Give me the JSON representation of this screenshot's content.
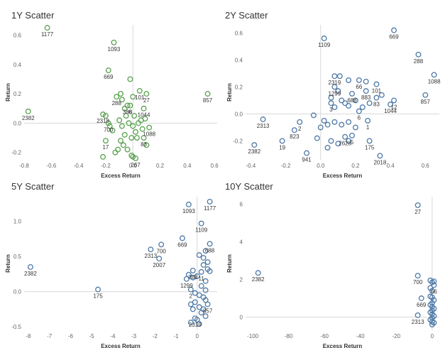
{
  "chart_data": [
    {
      "type": "scatter",
      "title": "1Y Scatter",
      "xlabel": "Excess Return",
      "ylabel": "Return",
      "xlim": [
        -0.8,
        0.62
      ],
      "ylim": [
        -0.25,
        0.67
      ],
      "xticks": [
        -0.8,
        -0.6,
        -0.4,
        -0.2,
        0.0,
        0.2,
        0.4,
        0.6
      ],
      "xtick_labels": [
        "-0.8",
        "-0.6",
        "-0.4",
        "-0.2",
        "0.0",
        "0.2",
        "0.4",
        "0.6"
      ],
      "yticks": [
        -0.2,
        0.0,
        0.2,
        0.4,
        0.6
      ],
      "ytick_labels": [
        "-0.2",
        "0.0",
        "0.2",
        "0.4",
        "0.6"
      ],
      "color": "#59a14f",
      "grid": false,
      "points": [
        {
          "x": -0.63,
          "y": 0.65,
          "label": "1177"
        },
        {
          "x": -0.77,
          "y": 0.08,
          "label": "2382"
        },
        {
          "x": -0.14,
          "y": 0.55,
          "label": "1093"
        },
        {
          "x": -0.18,
          "y": 0.36,
          "label": "669"
        },
        {
          "x": 0.55,
          "y": 0.2,
          "label": "857"
        },
        {
          "x": 0.05,
          "y": 0.22,
          "label": "101"
        },
        {
          "x": -0.12,
          "y": 0.18,
          "label": "288"
        },
        {
          "x": 0.1,
          "y": 0.2,
          "label": "27"
        },
        {
          "x": -0.04,
          "y": 0.12,
          "label": "388"
        },
        {
          "x": -0.02,
          "y": 0.12,
          "label": "6"
        },
        {
          "x": 0.08,
          "y": 0.1,
          "label": "1044"
        },
        {
          "x": -0.22,
          "y": 0.06,
          "label": "2318"
        },
        {
          "x": -0.18,
          "y": 0.0,
          "label": "700"
        },
        {
          "x": 0.12,
          "y": -0.03,
          "label": "1088"
        },
        {
          "x": 0.08,
          "y": -0.1,
          "label": "83"
        },
        {
          "x": -0.2,
          "y": -0.12,
          "label": "17"
        },
        {
          "x": 0.02,
          "y": -0.24,
          "label": "267"
        },
        {
          "x": -0.02,
          "y": 0.3
        },
        {
          "x": -0.2,
          "y": 0.05
        },
        {
          "x": -0.17,
          "y": -0.02
        },
        {
          "x": -0.15,
          "y": -0.05
        },
        {
          "x": -0.09,
          "y": 0.2
        },
        {
          "x": -0.08,
          "y": 0.16
        },
        {
          "x": -0.06,
          "y": 0.1
        },
        {
          "x": -0.05,
          "y": 0.05
        },
        {
          "x": -0.1,
          "y": 0.02
        },
        {
          "x": -0.08,
          "y": -0.02
        },
        {
          "x": -0.06,
          "y": -0.08
        },
        {
          "x": -0.09,
          "y": -0.12
        },
        {
          "x": -0.11,
          "y": -0.18
        },
        {
          "x": -0.07,
          "y": -0.15
        },
        {
          "x": -0.04,
          "y": -0.18
        },
        {
          "x": -0.03,
          "y": 0.0
        },
        {
          "x": 0.0,
          "y": 0.18
        },
        {
          "x": 0.01,
          "y": 0.05
        },
        {
          "x": 0.0,
          "y": -0.02
        },
        {
          "x": 0.02,
          "y": -0.06
        },
        {
          "x": 0.03,
          "y": -0.1
        },
        {
          "x": 0.04,
          "y": 0.0
        },
        {
          "x": 0.06,
          "y": 0.02
        },
        {
          "x": 0.07,
          "y": -0.04
        },
        {
          "x": 0.09,
          "y": 0.03
        },
        {
          "x": 0.1,
          "y": -0.15
        },
        {
          "x": 0.0,
          "y": -0.23
        },
        {
          "x": -0.01,
          "y": -0.22
        },
        {
          "x": -0.22,
          "y": -0.23
        },
        {
          "x": -0.13,
          "y": -0.2
        },
        {
          "x": -0.01,
          "y": -0.1
        }
      ]
    },
    {
      "type": "scatter",
      "title": "2Y Scatter",
      "xlabel": "Excess Return",
      "ylabel": "Return",
      "xlim": [
        -0.43,
        0.68
      ],
      "ylim": [
        -0.34,
        0.66
      ],
      "xticks": [
        -0.4,
        -0.2,
        0.0,
        0.2,
        0.4,
        0.6
      ],
      "xtick_labels": [
        "-0.4",
        "-0.2",
        "0.0",
        "0.2",
        "0.4",
        "0.6"
      ],
      "yticks": [
        -0.2,
        0.0,
        0.2,
        0.4,
        0.6
      ],
      "ytick_labels": [
        "-0.2",
        "0.0",
        "0.2",
        "0.4",
        "0.6"
      ],
      "color": "#4e79a7",
      "grid": false,
      "points": [
        {
          "x": 0.02,
          "y": 0.56,
          "label": "1109"
        },
        {
          "x": 0.42,
          "y": 0.62,
          "label": "669"
        },
        {
          "x": 0.56,
          "y": 0.44,
          "label": "288"
        },
        {
          "x": 0.65,
          "y": 0.29,
          "label": "1088"
        },
        {
          "x": 0.6,
          "y": 0.14,
          "label": "857"
        },
        {
          "x": 0.08,
          "y": 0.28,
          "label": "2319"
        },
        {
          "x": 0.22,
          "y": 0.25,
          "label": "66"
        },
        {
          "x": 0.32,
          "y": 0.22,
          "label": "101"
        },
        {
          "x": 0.08,
          "y": 0.2,
          "label": "1299"
        },
        {
          "x": 0.18,
          "y": 0.15,
          "label": "688"
        },
        {
          "x": 0.26,
          "y": 0.17,
          "label": "883"
        },
        {
          "x": 0.32,
          "y": 0.12,
          "label": "83"
        },
        {
          "x": 0.42,
          "y": 0.1,
          "label": "12"
        },
        {
          "x": 0.4,
          "y": 0.07,
          "label": "1044"
        },
        {
          "x": 0.06,
          "y": 0.08,
          "label": "3"
        },
        {
          "x": 0.22,
          "y": 0.02,
          "label": "6"
        },
        {
          "x": 0.27,
          "y": -0.05,
          "label": "1"
        },
        {
          "x": -0.33,
          "y": -0.04,
          "label": "2313"
        },
        {
          "x": -0.12,
          "y": -0.06,
          "label": "2"
        },
        {
          "x": -0.15,
          "y": -0.12,
          "label": "823"
        },
        {
          "x": -0.22,
          "y": -0.2,
          "label": "19"
        },
        {
          "x": -0.38,
          "y": -0.23,
          "label": "2382"
        },
        {
          "x": 0.14,
          "y": -0.17,
          "label": "2628"
        },
        {
          "x": 0.18,
          "y": -0.16,
          "label": "5"
        },
        {
          "x": 0.28,
          "y": -0.2,
          "label": "175"
        },
        {
          "x": 0.34,
          "y": -0.31,
          "label": "2018"
        },
        {
          "x": -0.08,
          "y": -0.29,
          "label": "941"
        },
        {
          "x": 0.11,
          "y": 0.28
        },
        {
          "x": 0.16,
          "y": 0.25
        },
        {
          "x": 0.26,
          "y": 0.24
        },
        {
          "x": 0.1,
          "y": 0.17
        },
        {
          "x": 0.06,
          "y": 0.12
        },
        {
          "x": 0.12,
          "y": 0.1
        },
        {
          "x": 0.14,
          "y": 0.08
        },
        {
          "x": 0.2,
          "y": 0.1
        },
        {
          "x": 0.28,
          "y": 0.08
        },
        {
          "x": 0.35,
          "y": 0.14
        },
        {
          "x": 0.08,
          "y": 0.05
        },
        {
          "x": 0.16,
          "y": 0.06
        },
        {
          "x": 0.24,
          "y": 0.05
        },
        {
          "x": -0.04,
          "y": -0.01
        },
        {
          "x": 0.02,
          "y": -0.05
        },
        {
          "x": 0.0,
          "y": -0.1
        },
        {
          "x": 0.04,
          "y": -0.08
        },
        {
          "x": 0.08,
          "y": -0.06
        },
        {
          "x": 0.12,
          "y": -0.08
        },
        {
          "x": 0.16,
          "y": -0.06
        },
        {
          "x": 0.2,
          "y": -0.1
        },
        {
          "x": 0.06,
          "y": -0.2
        },
        {
          "x": 0.1,
          "y": -0.22
        },
        {
          "x": 0.16,
          "y": -0.2
        },
        {
          "x": -0.02,
          "y": -0.18
        },
        {
          "x": 0.04,
          "y": -0.25
        }
      ]
    },
    {
      "type": "scatter",
      "title": "5Y Scatter",
      "xlabel": "Excess Return",
      "ylabel": "Return",
      "xlim": [
        -8.2,
        0.95
      ],
      "ylim": [
        -0.55,
        1.35
      ],
      "xticks": [
        -8,
        -7,
        -6,
        -5,
        -4,
        -3,
        -2,
        -1,
        0
      ],
      "xtick_labels": [
        "-8",
        "-7",
        "-6",
        "-5",
        "-4",
        "-3",
        "-2",
        "-1",
        "0"
      ],
      "yticks": [
        -0.5,
        0.0,
        0.5,
        1.0
      ],
      "ytick_labels": [
        "-0.5",
        "0.0",
        "0.5",
        "1.0"
      ],
      "color": "#4e79a7",
      "grid": false,
      "points": [
        {
          "x": -0.4,
          "y": 1.24,
          "label": "1093"
        },
        {
          "x": 0.6,
          "y": 1.28,
          "label": "1177"
        },
        {
          "x": 0.2,
          "y": 0.97,
          "label": "1109"
        },
        {
          "x": -1.7,
          "y": 0.67,
          "label": "700"
        },
        {
          "x": -0.7,
          "y": 0.76,
          "label": "669"
        },
        {
          "x": -2.2,
          "y": 0.6,
          "label": "2313"
        },
        {
          "x": -1.8,
          "y": 0.47,
          "label": "2007"
        },
        {
          "x": 0.6,
          "y": 0.68,
          "label": "688"
        },
        {
          "x": -0.2,
          "y": 0.3,
          "label": "288"
        },
        {
          "x": 0.2,
          "y": 0.28,
          "label": "11"
        },
        {
          "x": -0.5,
          "y": 0.18,
          "label": "1299"
        },
        {
          "x": -0.3,
          "y": 0.03,
          "label": "2"
        },
        {
          "x": 0.5,
          "y": -0.18,
          "label": "857"
        },
        {
          "x": -0.1,
          "y": -0.38,
          "label": "2319"
        },
        {
          "x": -7.9,
          "y": 0.35,
          "label": "2382"
        },
        {
          "x": -4.7,
          "y": 0.03,
          "label": "175"
        },
        {
          "x": 0.4,
          "y": 0.58
        },
        {
          "x": 0.1,
          "y": 0.52
        },
        {
          "x": 0.3,
          "y": 0.48
        },
        {
          "x": 0.5,
          "y": 0.42
        },
        {
          "x": 0.3,
          "y": 0.38
        },
        {
          "x": 0.5,
          "y": 0.32
        },
        {
          "x": 0.6,
          "y": 0.29
        },
        {
          "x": -0.4,
          "y": 0.24
        },
        {
          "x": 0.0,
          "y": 0.22
        },
        {
          "x": -0.2,
          "y": 0.2
        },
        {
          "x": 0.4,
          "y": 0.15
        },
        {
          "x": 0.2,
          "y": 0.08
        },
        {
          "x": 0.4,
          "y": 0.02
        },
        {
          "x": -0.1,
          "y": -0.02
        },
        {
          "x": 0.1,
          "y": -0.05
        },
        {
          "x": 0.3,
          "y": -0.08
        },
        {
          "x": 0.4,
          "y": -0.12
        },
        {
          "x": -0.3,
          "y": -0.18
        },
        {
          "x": -0.1,
          "y": -0.15
        },
        {
          "x": 0.1,
          "y": -0.22
        },
        {
          "x": 0.3,
          "y": -0.25
        },
        {
          "x": 0.2,
          "y": -0.3
        },
        {
          "x": -0.2,
          "y": -0.25
        },
        {
          "x": 0.4,
          "y": -0.35
        },
        {
          "x": 0.0,
          "y": -0.4
        },
        {
          "x": -0.3,
          "y": -0.44
        },
        {
          "x": 0.1,
          "y": -0.46
        }
      ]
    },
    {
      "type": "scatter",
      "title": "10Y Scatter",
      "xlabel": "Excess Return",
      "ylabel": "Return",
      "xlim": [
        -104,
        4
      ],
      "ylim": [
        -0.7,
        6.4
      ],
      "xticks": [
        -100,
        -80,
        -60,
        -40,
        -20,
        0
      ],
      "xtick_labels": [
        "-100",
        "-80",
        "-60",
        "-40",
        "-20",
        "0"
      ],
      "yticks": [
        0,
        2,
        4,
        6
      ],
      "ytick_labels": [
        "0",
        "2",
        "4",
        "6"
      ],
      "color": "#4e79a7",
      "grid": false,
      "points": [
        {
          "x": -8,
          "y": 5.95,
          "label": "27"
        },
        {
          "x": -97,
          "y": 2.35,
          "label": "2382"
        },
        {
          "x": -8,
          "y": 2.2,
          "label": "700"
        },
        {
          "x": 1,
          "y": 1.7,
          "label": "66"
        },
        {
          "x": -6,
          "y": 1.0,
          "label": "669"
        },
        {
          "x": -8,
          "y": 0.1,
          "label": "2313"
        },
        {
          "x": -1,
          "y": 1.95
        },
        {
          "x": 0,
          "y": 1.85
        },
        {
          "x": 1,
          "y": 1.9
        },
        {
          "x": -1,
          "y": 1.55
        },
        {
          "x": 0,
          "y": 1.4
        },
        {
          "x": -1,
          "y": 1.1
        },
        {
          "x": 0,
          "y": 1.05
        },
        {
          "x": 1,
          "y": 0.9
        },
        {
          "x": 0,
          "y": 0.75
        },
        {
          "x": -1,
          "y": 0.65
        },
        {
          "x": 0,
          "y": 0.55
        },
        {
          "x": 1,
          "y": 0.45
        },
        {
          "x": 0,
          "y": 0.35
        },
        {
          "x": -1,
          "y": 0.25
        },
        {
          "x": 0,
          "y": 0.15
        },
        {
          "x": 1,
          "y": 0.05
        },
        {
          "x": 0,
          "y": -0.05
        },
        {
          "x": -1,
          "y": -0.15
        },
        {
          "x": 0,
          "y": -0.25
        },
        {
          "x": 0,
          "y": -0.4
        },
        {
          "x": 1,
          "y": -0.3
        }
      ]
    }
  ]
}
